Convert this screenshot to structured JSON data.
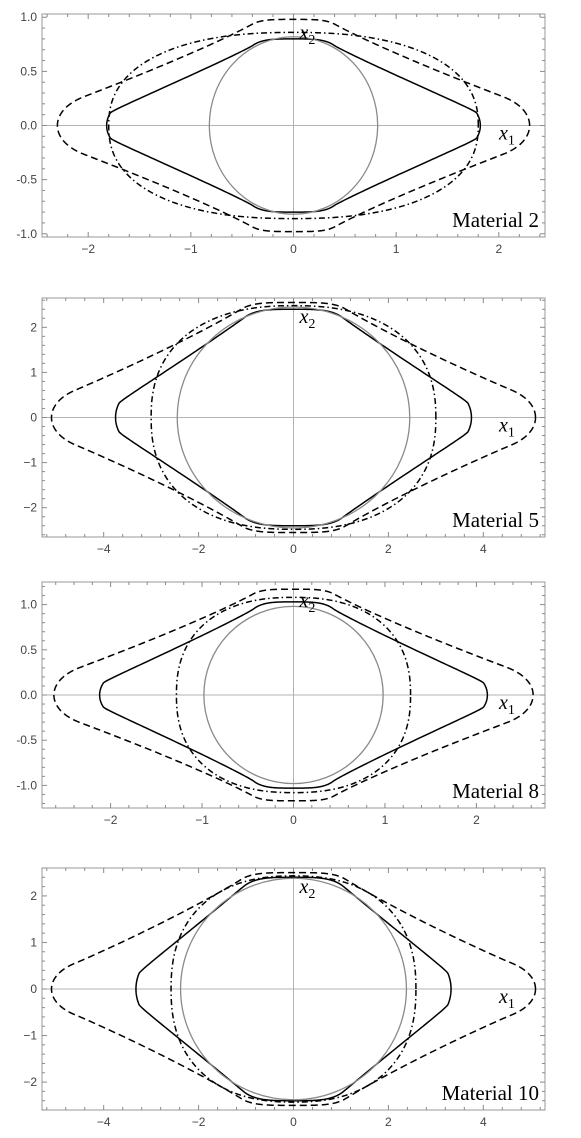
{
  "figure": {
    "axis_names": {
      "x1": "x",
      "x1_sub": "1",
      "x2": "x",
      "x2_sub": "2"
    },
    "curve_styles": [
      {
        "name": "solid-curve",
        "stroke": "#000000",
        "dash": ""
      },
      {
        "name": "dashed-curve",
        "stroke": "#000000",
        "dash": "7 4"
      },
      {
        "name": "dashdot-curve",
        "stroke": "#000000",
        "dash": "6 3 1.5 3"
      },
      {
        "name": "circle-curve",
        "stroke": "#8a8a8a",
        "dash": ""
      }
    ]
  },
  "chart_data": [
    {
      "type": "line",
      "title": "",
      "annotation": "Material 2",
      "xlim": [
        -2.45,
        2.45
      ],
      "ylim": [
        -1.03,
        1.03
      ],
      "xticks": [
        -2,
        -1,
        0,
        1,
        2
      ],
      "xtick_labels": [
        "−2",
        "−1",
        "0",
        "1",
        "2"
      ],
      "yticks": [
        -1.0,
        -0.5,
        0.0,
        0.5,
        1.0
      ],
      "ytick_labels": [
        "-1.0",
        "-0.5",
        "0.0",
        "0.5",
        "1.0"
      ],
      "grid": false,
      "series": [
        {
          "style": "solid",
          "x_extent": 1.82,
          "y_extent": 0.8,
          "waist_x": 0.5,
          "waist_y": 0.33
        },
        {
          "style": "dashed",
          "x_extent": 2.3,
          "y_extent": 0.98,
          "lobe_y": 0.5,
          "waist_x": 0.5,
          "waist_y": 0.33
        },
        {
          "style": "dash-dot",
          "x_extent": 1.8,
          "y_extent": 0.86
        },
        {
          "style": "circle",
          "radius": 0.82
        }
      ]
    },
    {
      "type": "line",
      "title": "",
      "annotation": "Material 5",
      "xlim": [
        -5.3,
        5.3
      ],
      "ylim": [
        -2.65,
        2.65
      ],
      "xticks": [
        -4,
        -2,
        0,
        2,
        4
      ],
      "xtick_labels": [
        "−4",
        "−2",
        "0",
        "2",
        "4"
      ],
      "yticks": [
        -2,
        -1,
        0,
        1,
        2
      ],
      "ytick_labels": [
        "−2",
        "−1",
        "0",
        "1",
        "2"
      ],
      "grid": false,
      "series": [
        {
          "style": "solid",
          "x_extent": 3.75,
          "y_extent": 2.4,
          "waist_x": 1.3,
          "waist_y": 0.9
        },
        {
          "style": "dashed",
          "x_extent": 5.1,
          "y_extent": 2.55,
          "lobe_y": 1.2,
          "waist_x": 1.3,
          "waist_y": 0.8
        },
        {
          "style": "dash-dot",
          "x_extent": 3.0,
          "y_extent": 2.48
        },
        {
          "style": "circle",
          "radius": 2.45
        }
      ]
    },
    {
      "type": "line",
      "title": "",
      "annotation": "Material 8",
      "xlim": [
        -2.75,
        2.75
      ],
      "ylim": [
        -1.25,
        1.25
      ],
      "xticks": [
        -2,
        -1,
        0,
        1,
        2
      ],
      "xtick_labels": [
        "−2",
        "−1",
        "0",
        "1",
        "2"
      ],
      "yticks": [
        -1.0,
        -0.5,
        0.0,
        0.5,
        1.0
      ],
      "ytick_labels": [
        "-1.0",
        "-0.5",
        "0.0",
        "0.5",
        "1.0"
      ],
      "grid": false,
      "series": [
        {
          "style": "solid",
          "x_extent": 2.12,
          "y_extent": 1.03,
          "waist_x": 0.55,
          "waist_y": 0.38
        },
        {
          "style": "dashed",
          "x_extent": 2.62,
          "y_extent": 1.17,
          "lobe_y": 0.58,
          "waist_x": 0.55,
          "waist_y": 0.38
        },
        {
          "style": "dash-dot",
          "x_extent": 1.28,
          "y_extent": 1.08
        },
        {
          "style": "circle",
          "radius": 0.98
        }
      ]
    },
    {
      "type": "line",
      "title": "",
      "annotation": "Material 10",
      "xlim": [
        -5.3,
        5.3
      ],
      "ylim": [
        -2.6,
        2.6
      ],
      "xticks": [
        -4,
        -2,
        0,
        2,
        4
      ],
      "xtick_labels": [
        "−4",
        "−2",
        "0",
        "2",
        "4"
      ],
      "yticks": [
        -2,
        -1,
        0,
        1,
        2
      ],
      "ytick_labels": [
        "−2",
        "−1",
        "0",
        "1",
        "2"
      ],
      "grid": false,
      "series": [
        {
          "style": "solid",
          "x_extent": 3.32,
          "y_extent": 2.4,
          "waist_x": 1.3,
          "waist_y": 0.95
        },
        {
          "style": "dashed",
          "x_extent": 5.1,
          "y_extent": 2.5,
          "lobe_y": 1.1,
          "waist_x": 1.3,
          "waist_y": 0.8
        },
        {
          "style": "dash-dot",
          "x_extent": 2.58,
          "y_extent": 2.43
        },
        {
          "style": "circle",
          "radius": 2.38
        }
      ]
    }
  ]
}
